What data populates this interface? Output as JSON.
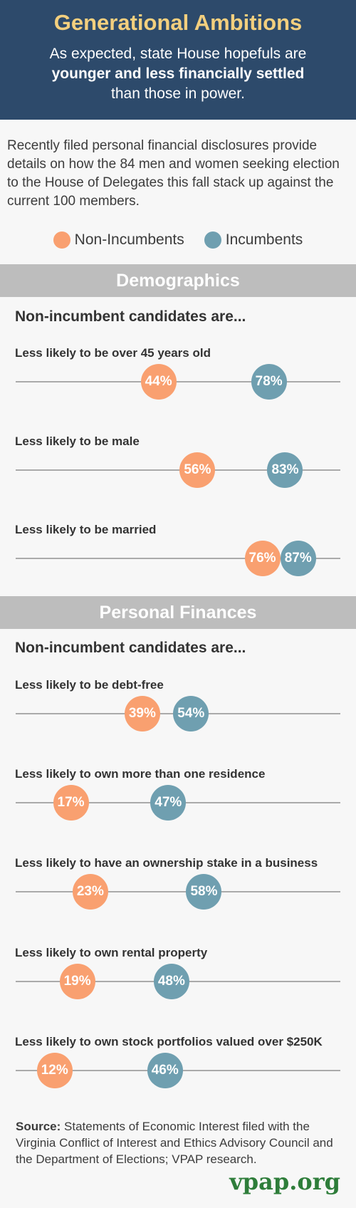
{
  "header": {
    "title": "Generational Ambitions",
    "subtitle_line1": "As expected, state House hopefuls are",
    "subtitle_bold": "younger and less financially settled",
    "subtitle_line3": "than those in power."
  },
  "intro": "Recently filed personal financial disclosures provide details on how the 84 men and women seeking election to the House of Delegates this fall stack up against the current 100 members.",
  "legend": {
    "non_incumbents": "Non-Incumbents",
    "incumbents": "Incumbents"
  },
  "colors": {
    "non_incumbents": "#f9a070",
    "incumbents": "#6f9fb0",
    "header_bg": "#2d4a6b",
    "title": "#f3cf7e",
    "band": "#bdbdbd",
    "brand": "#2e7d3a"
  },
  "lead_text": "Non-incumbent candidates are...",
  "chart_data": [
    {
      "type": "scatter",
      "title": "Demographics",
      "subtitle": "Non-incumbent candidates are...",
      "xlim": [
        0,
        100
      ],
      "categories": [
        "Less likely to be over 45 years old",
        "Less likely to be male",
        "Less likely to be married"
      ],
      "series": [
        {
          "name": "Non-Incumbents",
          "values": [
            44,
            56,
            76
          ]
        },
        {
          "name": "Incumbents",
          "values": [
            78,
            83,
            87
          ]
        }
      ]
    },
    {
      "type": "scatter",
      "title": "Personal Finances",
      "subtitle": "Non-incumbent candidates are...",
      "xlim": [
        0,
        100
      ],
      "categories": [
        "Less likely to be debt-free",
        "Less likely to own more than one residence",
        "Less likely to have an ownership stake in a business",
        "Less likely to own rental property",
        "Less likely to own stock portfolios valued over $250K"
      ],
      "series": [
        {
          "name": "Non-Incumbents",
          "values": [
            39,
            17,
            23,
            19,
            12
          ]
        },
        {
          "name": "Incumbents",
          "values": [
            54,
            47,
            58,
            48,
            46
          ]
        }
      ]
    }
  ],
  "source": {
    "label": "Source:",
    "text": "Statements of Economic Interest filed with the Virginia Conflict of Interest and Ethics Advisory Council and the Department of Elections; VPAP research."
  },
  "brand": "vpap.org"
}
